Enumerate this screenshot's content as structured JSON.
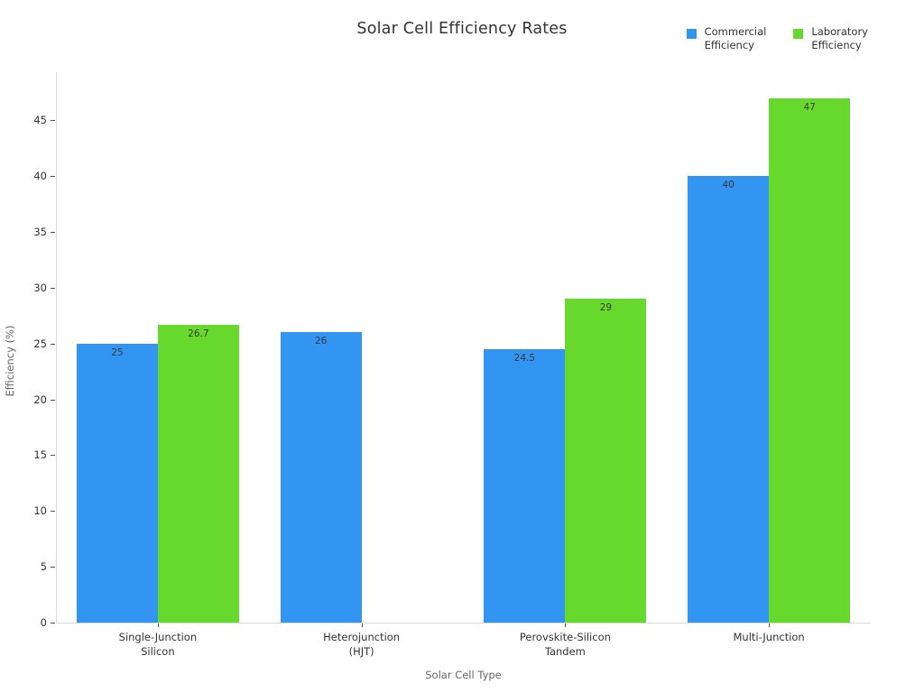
{
  "chart_data": {
    "type": "bar",
    "title": "Solar Cell Efficiency Rates",
    "xlabel": "Solar Cell Type",
    "ylabel": "Efficiency (%)",
    "categories": [
      "Single-Junction\nSilicon",
      "Heterojunction\n(HJT)",
      "Perovskite-Silicon\nTandem",
      "Multi-Junction"
    ],
    "series": [
      {
        "name": "Commercial Efficiency",
        "legend_label": "Commercial\nEfficiency",
        "color": "#3295F2",
        "values": [
          25,
          26,
          24.5,
          40
        ],
        "value_labels": [
          "25",
          "26",
          "24.5",
          "40"
        ]
      },
      {
        "name": "Laboratory Efficiency",
        "legend_label": "Laboratory\nEfficiency",
        "color": "#67D92D",
        "values": [
          26.7,
          null,
          29,
          47
        ],
        "value_labels": [
          "26.7",
          null,
          "29",
          "47"
        ]
      }
    ],
    "yticks": [
      0,
      5,
      10,
      15,
      20,
      25,
      30,
      35,
      40,
      45
    ],
    "ylim": [
      0,
      48.9
    ],
    "grid": false,
    "legend_position": "top-right",
    "colors": {
      "axis_line": "#d9d9d9",
      "tick_mark": "#555555",
      "tick_label": "#333333",
      "axis_title": "#666666",
      "title": "#333333",
      "bar_label": "#3a3a3a",
      "background": "#ffffff"
    }
  }
}
